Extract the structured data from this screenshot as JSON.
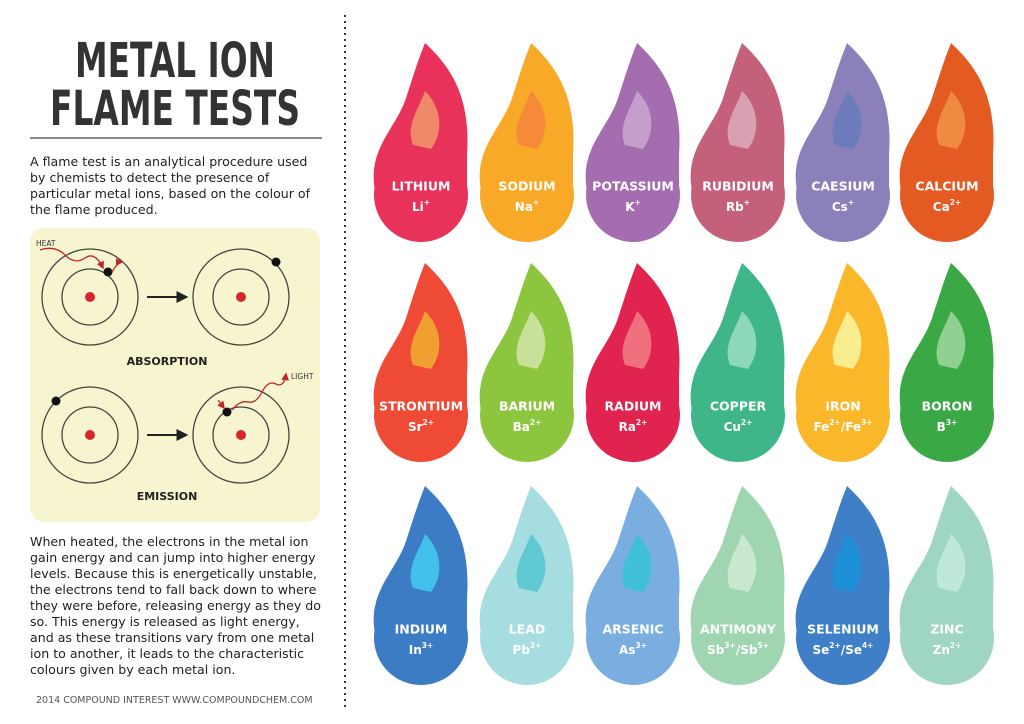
{
  "header": {
    "title_lines": [
      "METAL ION",
      "FLAME TESTS"
    ]
  },
  "intro": "A flame test is an analytical procedure used by chemists to detect the presence of particular metal ions, based on the colour of the flame produced.",
  "diagram": {
    "heat": "HEAT",
    "absorption": "ABSORPTION",
    "light": "LIGHT",
    "emission": "EMISSION"
  },
  "explanation": "When heated, the electrons in the metal ion gain energy and can jump into higher energy levels. Because this is energetically unstable, the electrons tend to fall back down to where they were before, releasing energy as they do so. This energy is released as light energy, and as these transitions vary from one metal ion to another, it leads to the characteristic colours given by each metal ion.",
  "footer": "2014 COMPOUND INTEREST WWW.COMPOUNDCHEM.COM",
  "ions": [
    {
      "name": "LITHIUM",
      "symbol": [
        {
          "base": "Li",
          "charge": "+"
        }
      ],
      "color": "#e8325a",
      "inner": "#f0886a"
    },
    {
      "name": "SODIUM",
      "symbol": [
        {
          "base": "Na",
          "charge": "+"
        }
      ],
      "color": "#f8a928",
      "inner": "#f48a3a"
    },
    {
      "name": "POTASSIUM",
      "symbol": [
        {
          "base": "K",
          "charge": "+"
        }
      ],
      "color": "#a46db0",
      "inner": "#c49fcc"
    },
    {
      "name": "RUBIDIUM",
      "symbol": [
        {
          "base": "Rb",
          "charge": "+"
        }
      ],
      "color": "#c4607a",
      "inner": "#d8a0b0"
    },
    {
      "name": "CAESIUM",
      "symbol": [
        {
          "base": "Cs",
          "charge": "+"
        }
      ],
      "color": "#8c80ba",
      "inner": "#6c7cba"
    },
    {
      "name": "CALCIUM",
      "symbol": [
        {
          "base": "Ca",
          "charge": "2+"
        }
      ],
      "color": "#e35a22",
      "inner": "#f08a40"
    },
    {
      "name": "STRONTIUM",
      "symbol": [
        {
          "base": "Sr",
          "charge": "2+"
        }
      ],
      "color": "#ee4a35",
      "inner": "#f0a030"
    },
    {
      "name": "BARIUM",
      "symbol": [
        {
          "base": "Ba",
          "charge": "2+"
        }
      ],
      "color": "#8cc63f",
      "inner": "#c8e09a"
    },
    {
      "name": "RADIUM",
      "symbol": [
        {
          "base": "Ra",
          "charge": "2+"
        }
      ],
      "color": "#e0234f",
      "inner": "#f07080"
    },
    {
      "name": "COPPER",
      "symbol": [
        {
          "base": "Cu",
          "charge": "2+"
        }
      ],
      "color": "#3fb68a",
      "inner": "#8dd8b8"
    },
    {
      "name": "IRON",
      "symbol": [
        {
          "base": "Fe",
          "charge": "2+"
        },
        {
          "base": "/Fe",
          "charge": "3+"
        }
      ],
      "color": "#fbb72a",
      "inner": "#f8ee90"
    },
    {
      "name": "BORON",
      "symbol": [
        {
          "base": "B",
          "charge": "3+"
        }
      ],
      "color": "#3aa845",
      "inner": "#90d090"
    },
    {
      "name": "INDIUM",
      "symbol": [
        {
          "base": "In",
          "charge": "3+"
        }
      ],
      "color": "#3b7cc4",
      "inner": "#40c0ea"
    },
    {
      "name": "LEAD",
      "symbol": [
        {
          "base": "Pb",
          "charge": "2+"
        }
      ],
      "color": "#a6dde0",
      "inner": "#60c8d0"
    },
    {
      "name": "ARSENIC",
      "symbol": [
        {
          "base": "As",
          "charge": "3+"
        }
      ],
      "color": "#7aaee0",
      "inner": "#40c0d8"
    },
    {
      "name": "ANTIMONY",
      "symbol": [
        {
          "base": "Sb",
          "charge": "3+"
        },
        {
          "base": "/Sb",
          "charge": "5+"
        }
      ],
      "color": "#9fd5b0",
      "inner": "#c8e8d0"
    },
    {
      "name": "SELENIUM",
      "symbol": [
        {
          "base": "Se",
          "charge": "2+"
        },
        {
          "base": "/Se",
          "charge": "4+"
        }
      ],
      "color": "#3e7fc8",
      "inner": "#1e90d8"
    },
    {
      "name": "ZINC",
      "symbol": [
        {
          "base": "Zn",
          "charge": "2+"
        }
      ],
      "color": "#9ed6c2",
      "inner": "#c0e8d8"
    }
  ]
}
